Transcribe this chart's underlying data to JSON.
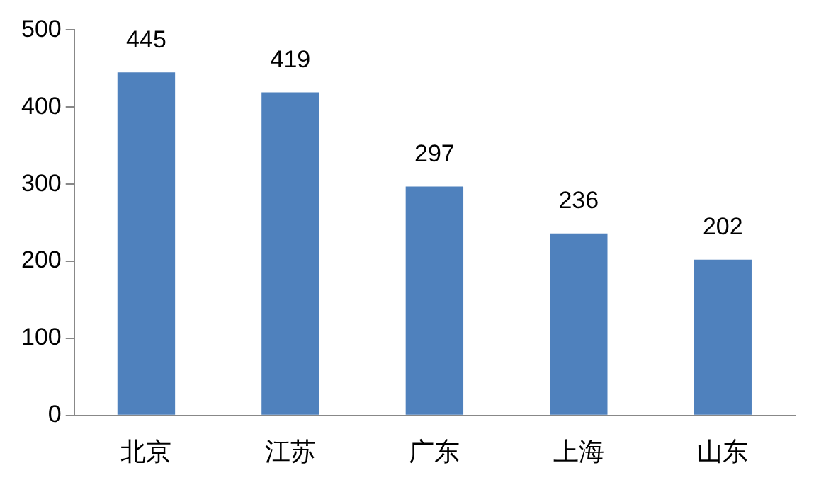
{
  "chart_data": {
    "type": "bar",
    "categories": [
      "北京",
      "江苏",
      "广东",
      "上海",
      "山东"
    ],
    "values": [
      445,
      419,
      297,
      236,
      202
    ],
    "color": "#4f81bd",
    "ylim": [
      0,
      500
    ],
    "yticks": [
      0,
      100,
      200,
      300,
      400,
      500
    ],
    "grid": false,
    "legend": false,
    "data_labels": true
  }
}
